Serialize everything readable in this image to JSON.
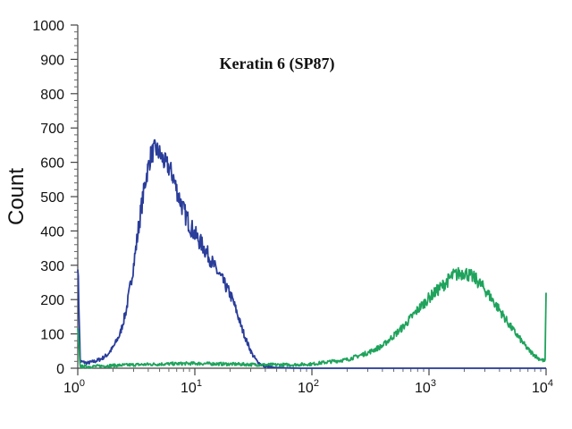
{
  "chart_data": {
    "type": "line",
    "title": "Keratin 6 (SP87)",
    "xlabel": "",
    "ylabel": "Count",
    "x_scale": "log",
    "xlim": [
      1,
      10000
    ],
    "ylim": [
      0,
      1000
    ],
    "y_ticks": [
      "0",
      "100",
      "200",
      "300",
      "400",
      "500",
      "600",
      "700",
      "800",
      "900",
      "1000"
    ],
    "x_ticks": [
      {
        "value": 1,
        "base": "10",
        "exp": "0"
      },
      {
        "value": 10,
        "base": "10",
        "exp": "1"
      },
      {
        "value": 100,
        "base": "10",
        "exp": "2"
      },
      {
        "value": 1000,
        "base": "10",
        "exp": "3"
      },
      {
        "value": 10000,
        "base": "10",
        "exp": "4"
      }
    ],
    "grid": false,
    "legend": "none",
    "series": [
      {
        "color": "#2a3d9a",
        "x": [
          1.0,
          1.05,
          1.2,
          1.4,
          1.6,
          1.8,
          2.0,
          2.3,
          2.6,
          3.0,
          3.4,
          3.8,
          4.2,
          4.6,
          5.0,
          5.5,
          6.0,
          6.5,
          7.0,
          8.0,
          9.0,
          10.0,
          11.5,
          13.0,
          15.0,
          17.0,
          19.0,
          21.0,
          23.0,
          25.0,
          28.0,
          31.0,
          34.0,
          37.0,
          40.0,
          45.0,
          50.0,
          60.0,
          80.0,
          100.0,
          200.0,
          500.0,
          1000.0,
          3000.0,
          10000.0
        ],
        "y": [
          310,
          20,
          15,
          20,
          28,
          40,
          60,
          100,
          170,
          300,
          440,
          550,
          620,
          640,
          625,
          600,
          585,
          560,
          520,
          460,
          420,
          390,
          360,
          330,
          290,
          260,
          230,
          200,
          160,
          120,
          75,
          40,
          20,
          10,
          5,
          3,
          2,
          1,
          0,
          0,
          0,
          0,
          0,
          0,
          0
        ]
      },
      {
        "color": "#1fa35c",
        "x": [
          1.0,
          1.05,
          1.3,
          2.0,
          3.0,
          5.0,
          7.0,
          10.0,
          20.0,
          40.0,
          70.0,
          100.0,
          150.0,
          200.0,
          300.0,
          400.0,
          500.0,
          600.0,
          800.0,
          1000.0,
          1300.0,
          1600.0,
          2000.0,
          2500.0,
          3000.0,
          4000.0,
          5000.0,
          6000.0,
          7000.0,
          8500.0,
          9800.0,
          10000.0
        ],
        "y": [
          110,
          5,
          5,
          8,
          10,
          12,
          13,
          14,
          12,
          10,
          10,
          12,
          20,
          25,
          45,
          65,
          95,
          120,
          170,
          205,
          240,
          270,
          280,
          260,
          230,
          170,
          120,
          85,
          55,
          30,
          20,
          220
        ]
      }
    ]
  }
}
